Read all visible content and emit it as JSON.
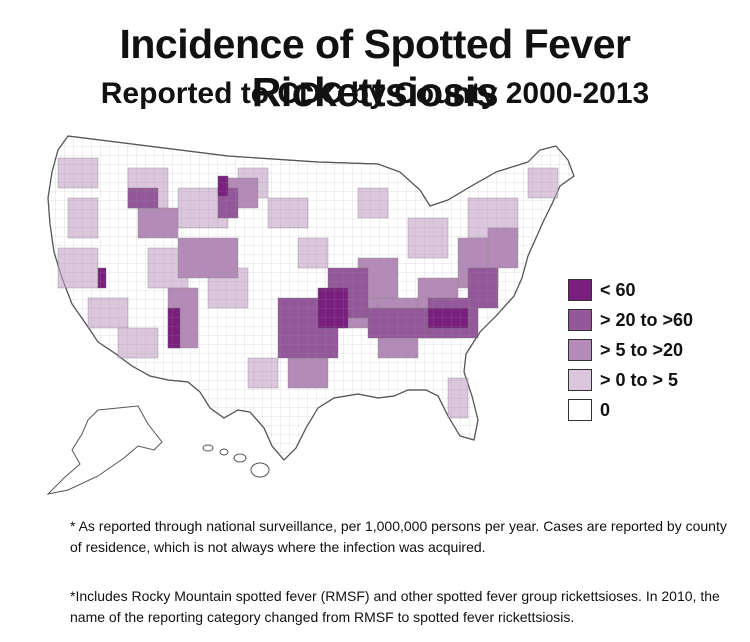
{
  "title": "Incidence of Spotted Fever Rickettsiosis",
  "subtitle": "Reported to CDC by County 2000-2013",
  "legend": {
    "items": [
      {
        "label": "< 60",
        "color": "#7a1f7e"
      },
      {
        "label": "> 20 to >60",
        "color": "#94579a"
      },
      {
        "label": "> 5 to >20",
        "color": "#b48ab8"
      },
      {
        "label": "> 0 to > 5",
        "color": "#dcc6de"
      },
      {
        "label": "0",
        "color": "#ffffff"
      }
    ]
  },
  "notes": {
    "note1": "* As reported through national surveillance, per 1,000,000 persons per year. Cases are reported by county of residence, which is not always where the infection was acquired.",
    "note2": "*Includes Rocky Mountain spotted fever (RMSF) and other spotted fever group rickettsioses. In 2010, the name of the reporting category changed from RMSF to spotted fever rickettsiosis."
  },
  "colors": {
    "highest": "#7a1f7e",
    "high": "#94579a",
    "medium": "#b48ab8",
    "low": "#dcc6de",
    "none": "#ffffff",
    "border": "#8a8a8a"
  }
}
